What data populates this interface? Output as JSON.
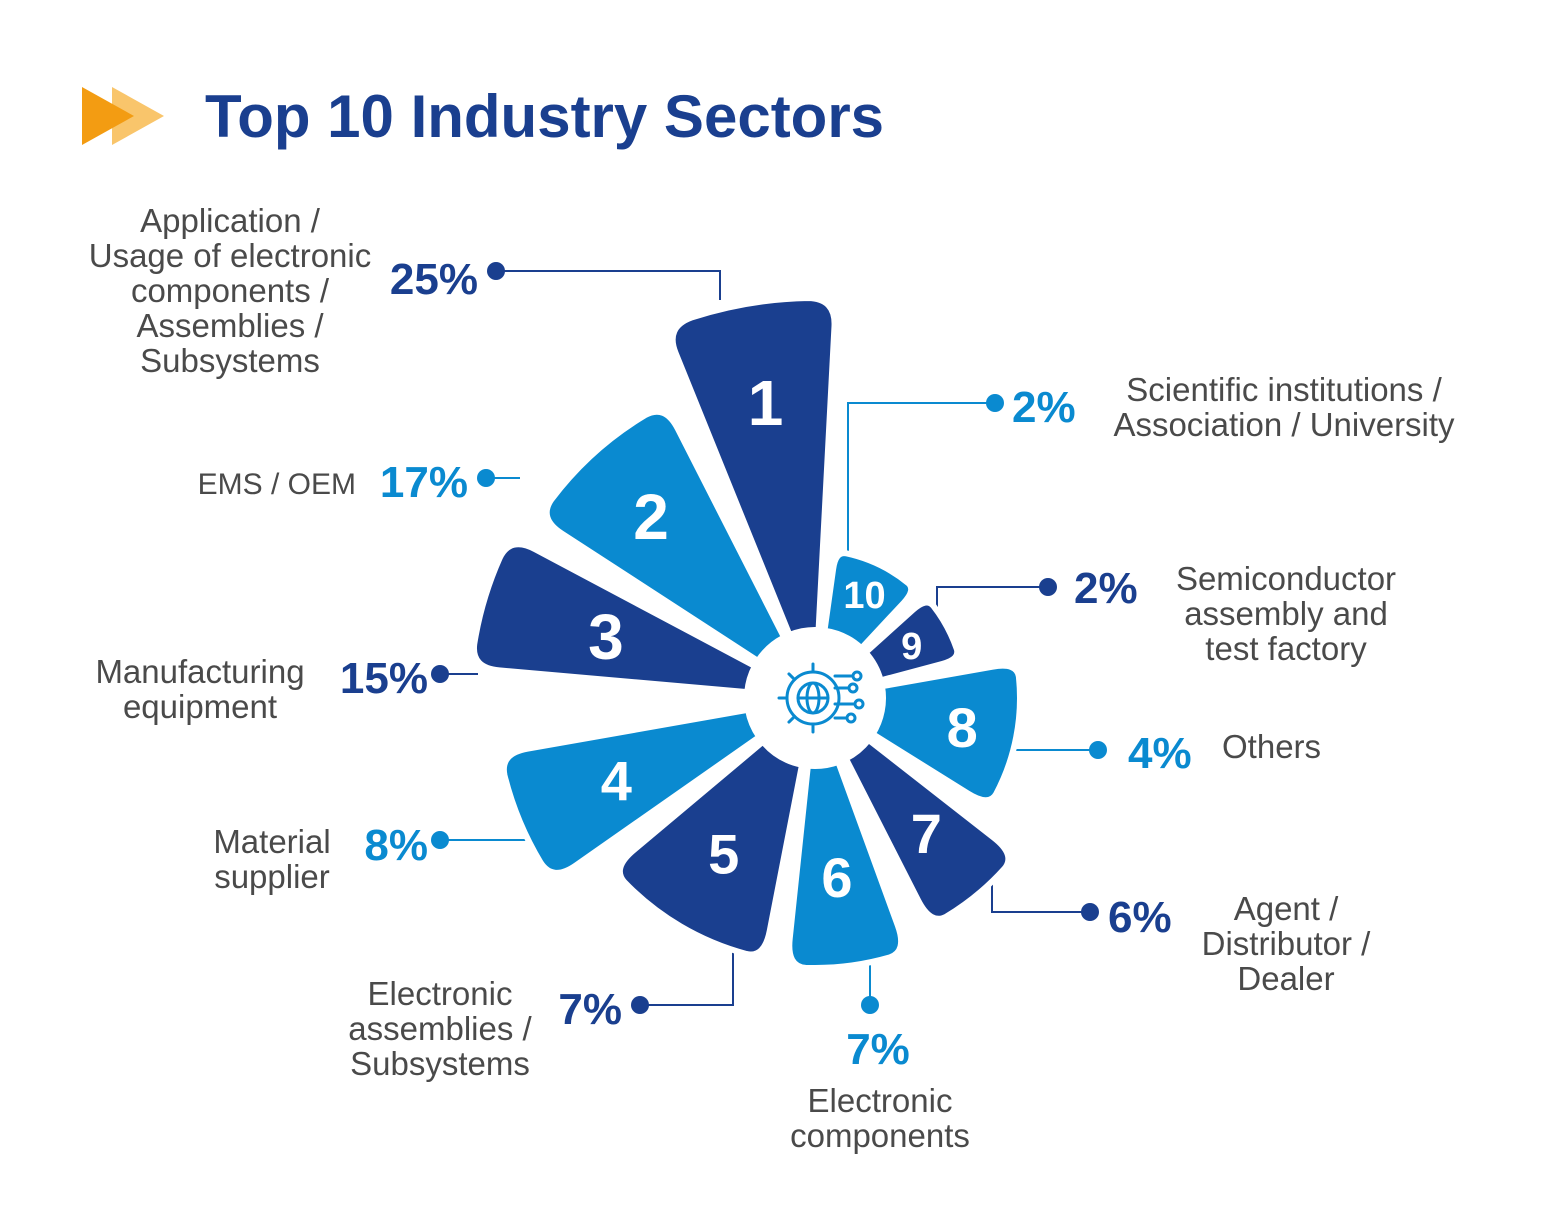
{
  "header": {
    "title": "Top 10 Industry Sectors"
  },
  "colors": {
    "navy": "#1a3f8f",
    "blue": "#0a8ad0",
    "accent_orange": "#f39c12",
    "accent_light_orange": "#f9c56b",
    "label_text": "#4a4a4a"
  },
  "center_icon": "gear-globe-circuit-icon",
  "chart_data": {
    "type": "polar-area",
    "title": "Top 10 Industry Sectors",
    "unit": "%",
    "sectors": [
      {
        "rank": "1",
        "percent": "25%",
        "value": 25,
        "label": [
          "Application /",
          "Usage of electronic",
          "components /",
          "Assemblies /",
          "Subsystems"
        ],
        "color": "#1a3f8f"
      },
      {
        "rank": "2",
        "percent": "17%",
        "value": 17,
        "label": [
          "EMS / OEM"
        ],
        "color": "#0a8ad0"
      },
      {
        "rank": "3",
        "percent": "15%",
        "value": 15,
        "label": [
          "Manufacturing",
          "equipment"
        ],
        "color": "#1a3f8f"
      },
      {
        "rank": "4",
        "percent": "8%",
        "value": 8,
        "label": [
          "Material",
          "supplier"
        ],
        "color": "#0a8ad0"
      },
      {
        "rank": "5",
        "percent": "7%",
        "value": 7,
        "label": [
          "Electronic",
          "assemblies /",
          "Subsystems"
        ],
        "color": "#1a3f8f"
      },
      {
        "rank": "6",
        "percent": "7%",
        "value": 7,
        "label": [
          "Electronic",
          "components"
        ],
        "color": "#0a8ad0"
      },
      {
        "rank": "7",
        "percent": "6%",
        "value": 6,
        "label": [
          "Agent /",
          "Distributor /",
          "Dealer"
        ],
        "color": "#1a3f8f"
      },
      {
        "rank": "8",
        "percent": "4%",
        "value": 4,
        "label": [
          "Others"
        ],
        "color": "#0a8ad0"
      },
      {
        "rank": "9",
        "percent": "2%",
        "value": 2,
        "label": [
          "Semiconductor",
          "assembly and",
          "test factory"
        ],
        "color": "#1a3f8f"
      },
      {
        "rank": "10",
        "percent": "2%",
        "value": 2,
        "label": [
          "Scientific institutions /",
          "Association / University"
        ],
        "color": "#0a8ad0"
      }
    ]
  }
}
